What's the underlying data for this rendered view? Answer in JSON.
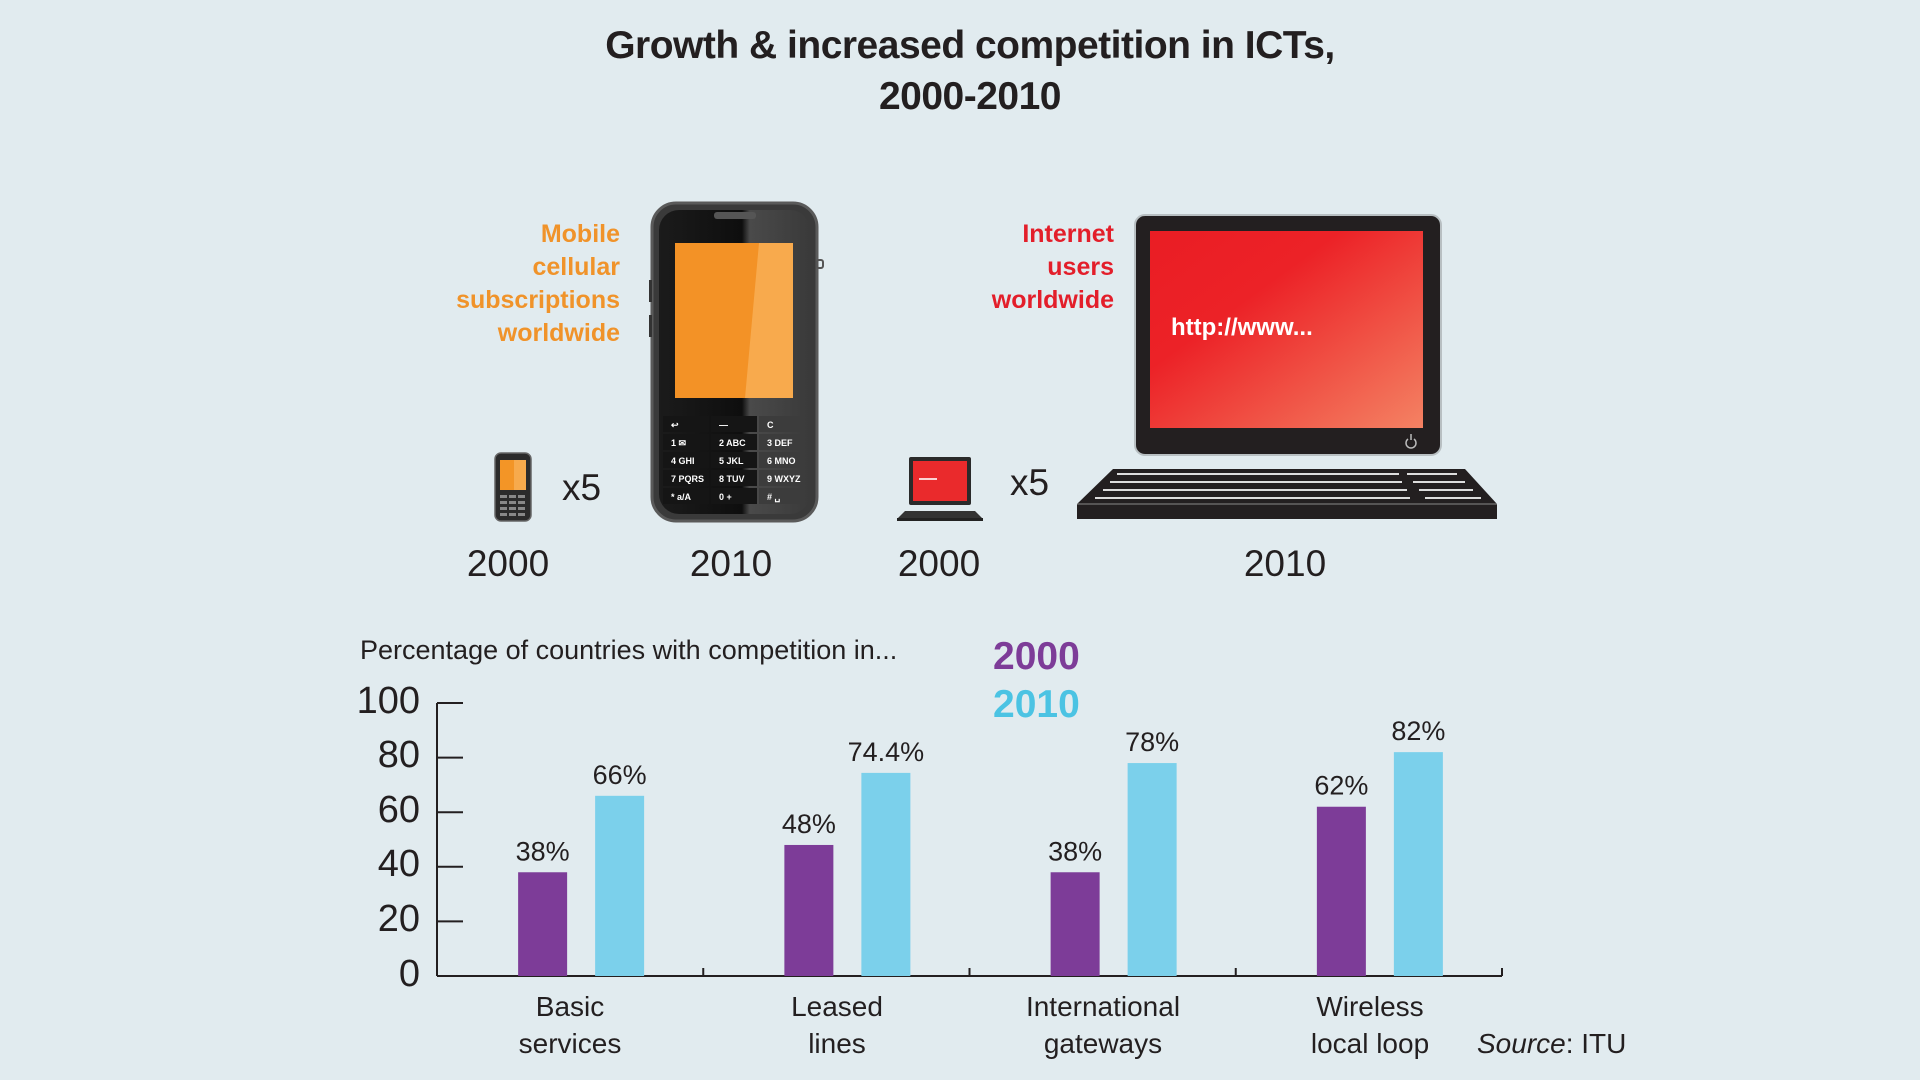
{
  "title": {
    "line1": "Growth & increased competition in ICTs,",
    "line2": "2000-2010"
  },
  "infographic": {
    "mobile": {
      "label_lines": [
        "Mobile",
        "cellular",
        "subscriptions",
        "worldwide"
      ],
      "color": "#f0932a",
      "multiplier": "x5",
      "year_from": "2000",
      "year_to": "2010",
      "icon": "mobile-phone-icon",
      "keypad": [
        [
          "↩",
          "—",
          "C"
        ],
        [
          "1 ✉",
          "2 ABC",
          "3 DEF"
        ],
        [
          "4 GHI",
          "5 JKL",
          "6 MNO"
        ],
        [
          "7 PQRS",
          "8 TUV",
          "9 WXYZ"
        ],
        [
          "* a/A",
          "0 +",
          "# ␣"
        ]
      ]
    },
    "internet": {
      "label_lines": [
        "Internet",
        "users",
        "worldwide"
      ],
      "color": "#e31e2a",
      "multiplier": "x5",
      "year_from": "2000",
      "year_to": "2010",
      "screen_text": "http://www...",
      "icon": "desktop-computer-icon"
    }
  },
  "chart_data": {
    "type": "bar",
    "title": "Percentage of countries with competition in...",
    "xlabel": "",
    "ylabel": "",
    "ylim": [
      0,
      100
    ],
    "yticks": [
      "0",
      "20",
      "40",
      "60",
      "80",
      "100"
    ],
    "categories": [
      "Basic services",
      "Leased lines",
      "International gateways",
      "Wireless local loop"
    ],
    "category_lines": [
      [
        "Basic",
        "services"
      ],
      [
        "Leased",
        "lines"
      ],
      [
        "International",
        "gateways"
      ],
      [
        "Wireless",
        "local loop"
      ]
    ],
    "series": [
      {
        "name": "2000",
        "color": "#7d3c98",
        "values": [
          38,
          48,
          38,
          62
        ],
        "labels": [
          "38%",
          "48%",
          "38%",
          "62%"
        ]
      },
      {
        "name": "2010",
        "color": "#7bd0eb",
        "values": [
          66,
          74.4,
          78,
          82
        ],
        "labels": [
          "66%",
          "74.4%",
          "78%",
          "82%"
        ]
      }
    ],
    "legend": {
      "position": "top-center",
      "entries": [
        "2000",
        "2010"
      ],
      "colors": [
        "#7d3c98",
        "#4bc3e3"
      ]
    },
    "grid": false
  },
  "source": {
    "prefix": "Source",
    "value": ": ITU"
  }
}
